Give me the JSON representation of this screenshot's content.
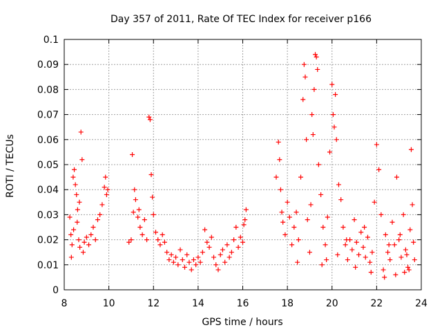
{
  "chart_data": {
    "type": "scatter",
    "title": "Day 357 of 2011, Rate Of TEC Index for receiver p166",
    "xlabel": "GPS time / hours",
    "ylabel": "ROTI / TECUs",
    "xlim": [
      8,
      24
    ],
    "ylim": [
      0,
      0.1
    ],
    "grid": true,
    "marker": "+",
    "series_color": "#ff0000",
    "xticks": [
      8,
      10,
      12,
      14,
      16,
      18,
      20,
      22,
      24
    ],
    "xtick_labels": [
      "8",
      "10",
      "12",
      "14",
      "16",
      "18",
      "20",
      "22",
      "24"
    ],
    "yticks": [
      0,
      0.01,
      0.02,
      0.03,
      0.04,
      0.05,
      0.06,
      0.07,
      0.08,
      0.09,
      0.1
    ],
    "ytick_labels": [
      "0",
      "0.01",
      "0.02",
      "0.03",
      "0.04",
      "0.05",
      "0.06",
      "0.07",
      "0.08",
      "0.09",
      "0.1"
    ],
    "series": [
      {
        "name": "ROTI",
        "points": [
          [
            8.25,
            0.029
          ],
          [
            8.3,
            0.022
          ],
          [
            8.35,
            0.018
          ],
          [
            8.4,
            0.045
          ],
          [
            8.45,
            0.048
          ],
          [
            8.5,
            0.042
          ],
          [
            8.55,
            0.038
          ],
          [
            8.6,
            0.032
          ],
          [
            8.65,
            0.02
          ],
          [
            8.7,
            0.017
          ],
          [
            8.75,
            0.063
          ],
          [
            8.8,
            0.052
          ],
          [
            8.85,
            0.015
          ],
          [
            8.9,
            0.019
          ],
          [
            9.0,
            0.021
          ],
          [
            9.1,
            0.018
          ],
          [
            9.2,
            0.022
          ],
          [
            9.3,
            0.025
          ],
          [
            9.4,
            0.02
          ],
          [
            9.5,
            0.028
          ],
          [
            9.6,
            0.03
          ],
          [
            9.7,
            0.034
          ],
          [
            9.8,
            0.041
          ],
          [
            9.85,
            0.045
          ],
          [
            9.9,
            0.038
          ],
          [
            9.95,
            0.04
          ],
          [
            8.32,
            0.013
          ],
          [
            8.42,
            0.024
          ],
          [
            8.58,
            0.027
          ],
          [
            8.68,
            0.035
          ],
          [
            10.9,
            0.019
          ],
          [
            11.0,
            0.02
          ],
          [
            11.05,
            0.054
          ],
          [
            11.1,
            0.031
          ],
          [
            11.15,
            0.04
          ],
          [
            11.2,
            0.036
          ],
          [
            11.3,
            0.029
          ],
          [
            11.35,
            0.032
          ],
          [
            11.4,
            0.025
          ],
          [
            11.5,
            0.022
          ],
          [
            11.6,
            0.028
          ],
          [
            11.7,
            0.02
          ],
          [
            11.8,
            0.069
          ],
          [
            11.85,
            0.068
          ],
          [
            11.9,
            0.046
          ],
          [
            11.95,
            0.037
          ],
          [
            12.0,
            0.03
          ],
          [
            12.1,
            0.023
          ],
          [
            12.2,
            0.02
          ],
          [
            12.3,
            0.018
          ],
          [
            12.4,
            0.022
          ],
          [
            12.5,
            0.019
          ],
          [
            12.6,
            0.015
          ],
          [
            12.7,
            0.012
          ],
          [
            12.8,
            0.014
          ],
          [
            12.9,
            0.011
          ],
          [
            13.0,
            0.013
          ],
          [
            13.1,
            0.01
          ],
          [
            13.2,
            0.016
          ],
          [
            13.3,
            0.012
          ],
          [
            13.4,
            0.009
          ],
          [
            13.5,
            0.014
          ],
          [
            13.6,
            0.011
          ],
          [
            13.7,
            0.008
          ],
          [
            13.8,
            0.012
          ],
          [
            13.9,
            0.01
          ],
          [
            14.0,
            0.013
          ],
          [
            14.1,
            0.011
          ],
          [
            14.2,
            0.015
          ],
          [
            14.3,
            0.024
          ],
          [
            14.4,
            0.019
          ],
          [
            14.5,
            0.017
          ],
          [
            14.6,
            0.021
          ],
          [
            14.7,
            0.013
          ],
          [
            14.8,
            0.01
          ],
          [
            14.9,
            0.008
          ],
          [
            15.0,
            0.014
          ],
          [
            15.1,
            0.016
          ],
          [
            15.2,
            0.011
          ],
          [
            15.3,
            0.018
          ],
          [
            15.4,
            0.013
          ],
          [
            15.5,
            0.015
          ],
          [
            15.6,
            0.02
          ],
          [
            15.7,
            0.025
          ],
          [
            15.8,
            0.017
          ],
          [
            15.9,
            0.021
          ],
          [
            16.0,
            0.019
          ],
          [
            16.1,
            0.028
          ],
          [
            16.15,
            0.032
          ],
          [
            16.05,
            0.026
          ],
          [
            17.5,
            0.045
          ],
          [
            17.6,
            0.059
          ],
          [
            17.65,
            0.052
          ],
          [
            17.7,
            0.04
          ],
          [
            17.75,
            0.031
          ],
          [
            17.8,
            0.027
          ],
          [
            17.9,
            0.022
          ],
          [
            18.0,
            0.035
          ],
          [
            18.1,
            0.029
          ],
          [
            18.2,
            0.018
          ],
          [
            18.3,
            0.025
          ],
          [
            18.4,
            0.031
          ],
          [
            18.5,
            0.02
          ],
          [
            18.6,
            0.045
          ],
          [
            18.7,
            0.076
          ],
          [
            18.75,
            0.09
          ],
          [
            18.8,
            0.085
          ],
          [
            18.85,
            0.06
          ],
          [
            18.9,
            0.028
          ],
          [
            19.0,
            0.015
          ],
          [
            19.05,
            0.034
          ],
          [
            19.1,
            0.07
          ],
          [
            19.15,
            0.062
          ],
          [
            19.2,
            0.08
          ],
          [
            19.25,
            0.094
          ],
          [
            19.3,
            0.093
          ],
          [
            19.35,
            0.088
          ],
          [
            19.4,
            0.05
          ],
          [
            19.5,
            0.038
          ],
          [
            19.6,
            0.025
          ],
          [
            19.7,
            0.018
          ],
          [
            19.8,
            0.029
          ],
          [
            19.9,
            0.055
          ],
          [
            20.0,
            0.082
          ],
          [
            20.05,
            0.07
          ],
          [
            20.1,
            0.065
          ],
          [
            20.15,
            0.078
          ],
          [
            20.2,
            0.06
          ],
          [
            20.3,
            0.042
          ],
          [
            20.4,
            0.036
          ],
          [
            20.5,
            0.025
          ],
          [
            20.6,
            0.018
          ],
          [
            20.7,
            0.012
          ],
          [
            20.8,
            0.02
          ],
          [
            20.9,
            0.016
          ],
          [
            21.0,
            0.028
          ],
          [
            21.1,
            0.019
          ],
          [
            21.2,
            0.014
          ],
          [
            21.3,
            0.023
          ],
          [
            21.4,
            0.017
          ],
          [
            21.5,
            0.013
          ],
          [
            21.6,
            0.021
          ],
          [
            21.7,
            0.011
          ],
          [
            21.8,
            0.015
          ],
          [
            21.9,
            0.035
          ],
          [
            22.0,
            0.058
          ],
          [
            22.1,
            0.048
          ],
          [
            22.2,
            0.03
          ],
          [
            22.3,
            0.008
          ],
          [
            22.4,
            0.022
          ],
          [
            22.5,
            0.015
          ],
          [
            22.6,
            0.012
          ],
          [
            22.7,
            0.027
          ],
          [
            22.8,
            0.018
          ],
          [
            22.9,
            0.045
          ],
          [
            23.0,
            0.02
          ],
          [
            23.1,
            0.013
          ],
          [
            23.2,
            0.03
          ],
          [
            23.3,
            0.016
          ],
          [
            23.4,
            0.009
          ],
          [
            23.5,
            0.024
          ],
          [
            23.55,
            0.056
          ],
          [
            23.6,
            0.034
          ],
          [
            23.65,
            0.019
          ],
          [
            23.7,
            0.012
          ],
          [
            18.45,
            0.011
          ],
          [
            19.55,
            0.01
          ],
          [
            20.25,
            0.014
          ],
          [
            21.05,
            0.009
          ],
          [
            21.75,
            0.007
          ],
          [
            22.35,
            0.005
          ],
          [
            22.85,
            0.006
          ],
          [
            23.25,
            0.007
          ],
          [
            23.45,
            0.008
          ],
          [
            19.75,
            0.012
          ],
          [
            20.65,
            0.02
          ],
          [
            21.45,
            0.025
          ],
          [
            22.55,
            0.018
          ],
          [
            23.05,
            0.022
          ],
          [
            23.35,
            0.014
          ]
        ]
      }
    ]
  }
}
